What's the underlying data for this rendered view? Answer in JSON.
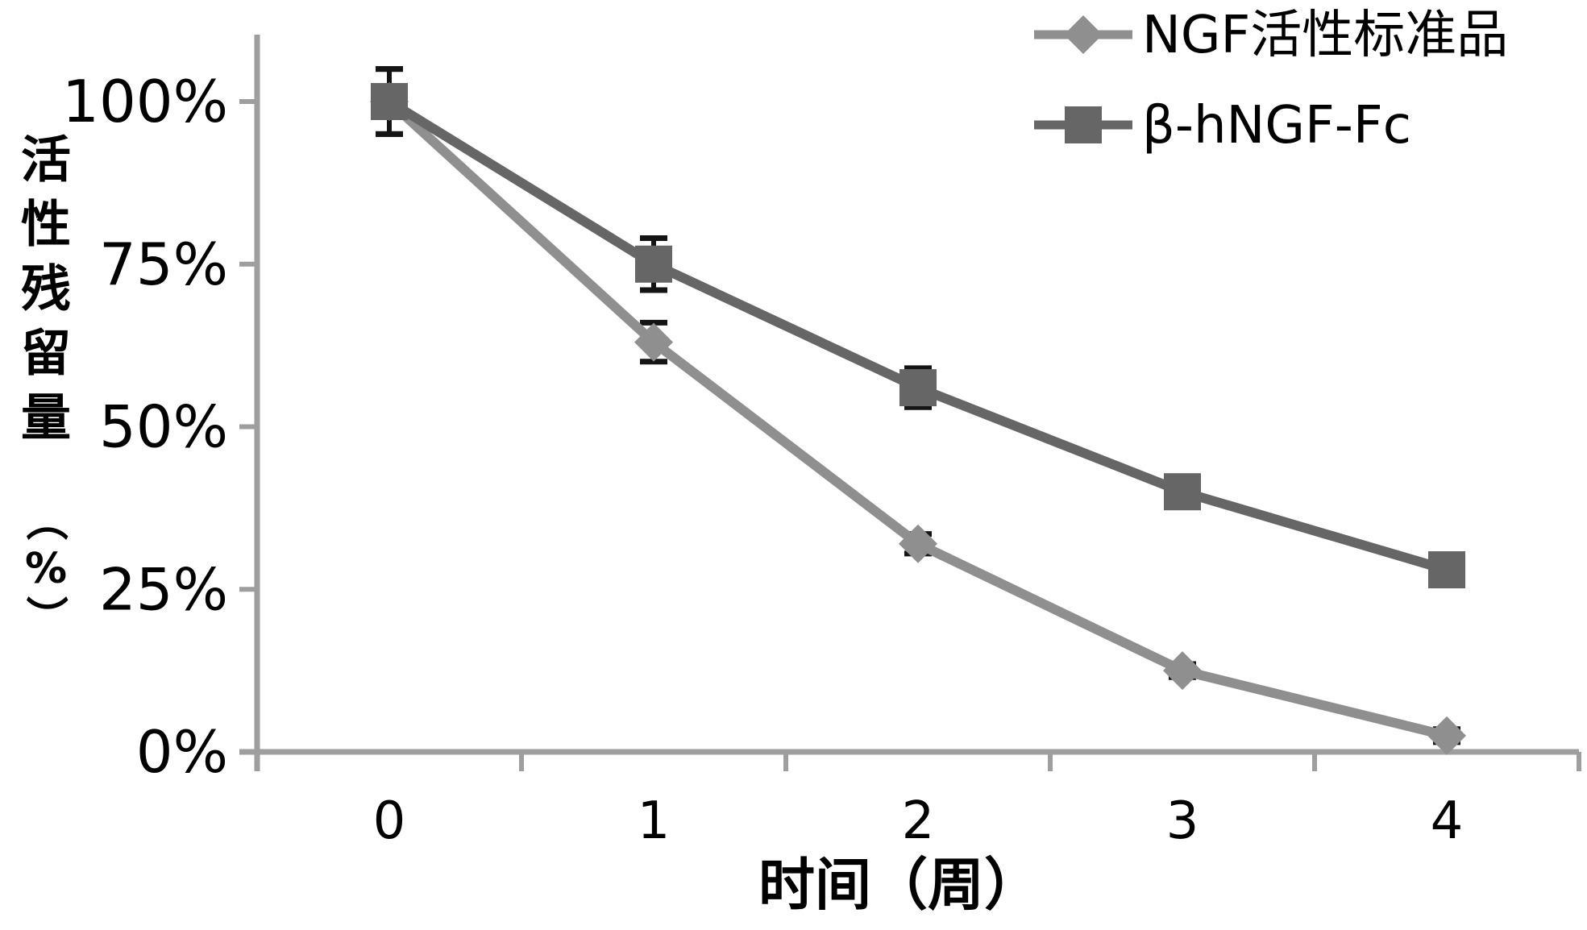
{
  "figure": {
    "background": "#ffffff"
  },
  "chart_data": {
    "type": "line",
    "title": "",
    "xlabel": "时间（周）",
    "ylabel": "活性残留量（%）",
    "categories": [
      0,
      1,
      2,
      3,
      4
    ],
    "xtick_labels": [
      "0",
      "1",
      "2",
      "3",
      "4"
    ],
    "ytick_labels": [
      "100%",
      "75%",
      "50%",
      "25%",
      "0%"
    ],
    "ytick_values": [
      100,
      75,
      50,
      25,
      0
    ],
    "ylim": [
      0,
      100
    ],
    "grid": false,
    "legend_position": "top-right",
    "series": [
      {
        "name": "NGF活性标准品",
        "marker": "diamond",
        "color": "#8f8f8f",
        "values": [
          100,
          63,
          32,
          12.5,
          2.5
        ],
        "error_bars": [
          5,
          3,
          1.5,
          1,
          1
        ]
      },
      {
        "name": "β-hNGF-Fc",
        "marker": "square",
        "color": "#666666",
        "values": [
          100,
          75,
          56,
          40,
          28
        ],
        "error_bars": [
          5,
          4,
          3,
          1,
          1
        ]
      }
    ],
    "colors": {
      "axis": "#9e9e9e",
      "error_bar": "#141414",
      "text": "#000000"
    }
  }
}
